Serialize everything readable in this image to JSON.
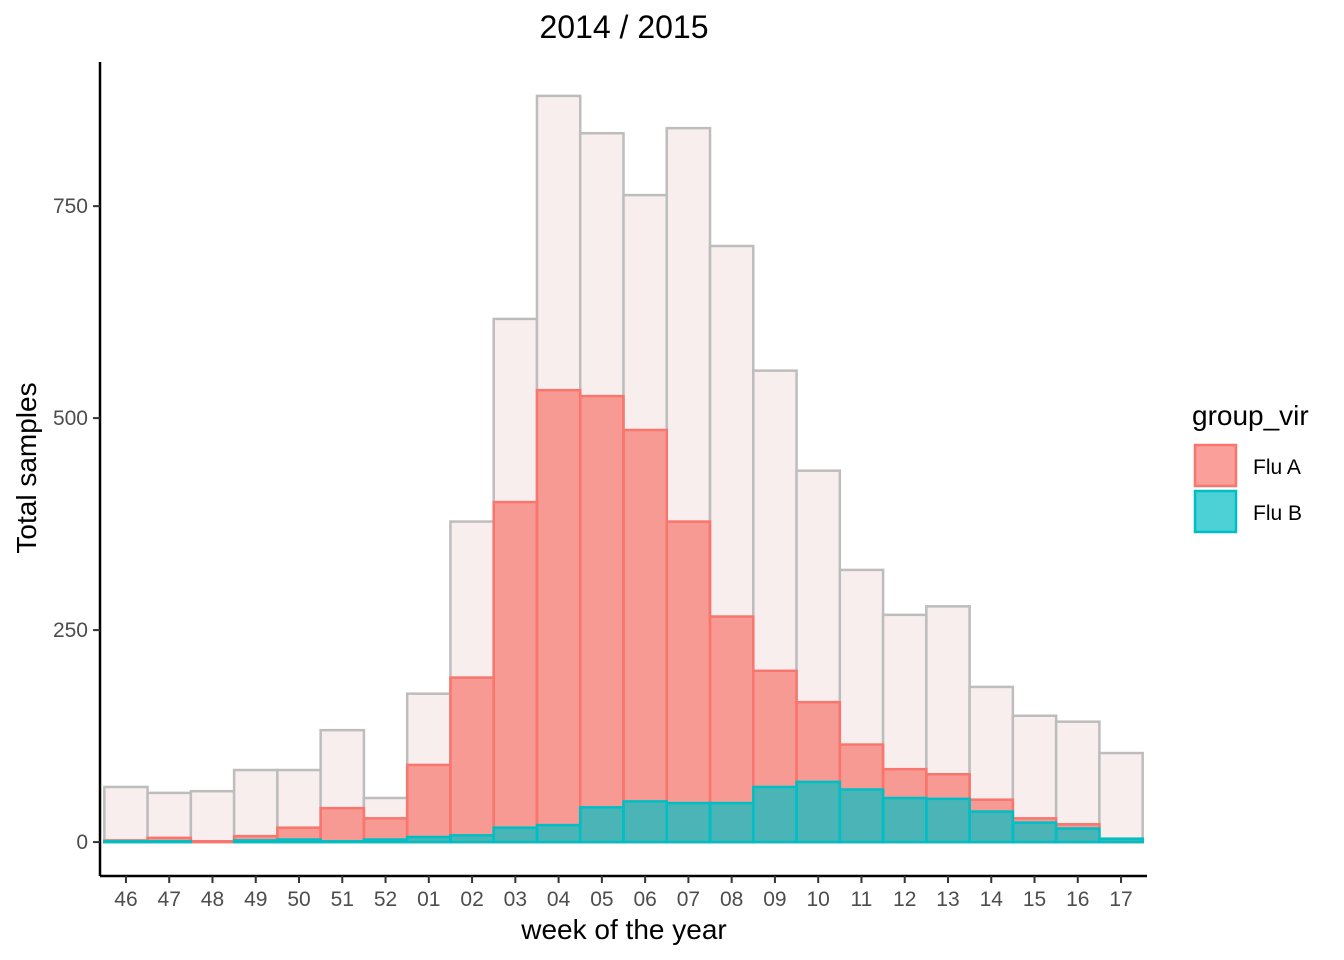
{
  "chart_data": {
    "type": "bar",
    "title": "2014 / 2015",
    "xlabel": "week of the year",
    "ylabel": "Total samples",
    "categories": [
      "46",
      "47",
      "48",
      "49",
      "50",
      "51",
      "52",
      "01",
      "02",
      "03",
      "04",
      "05",
      "06",
      "07",
      "08",
      "09",
      "10",
      "11",
      "12",
      "13",
      "14",
      "15",
      "16",
      "17"
    ],
    "ylim": [
      -40,
      920
    ],
    "yticks": [
      0,
      250,
      500,
      750
    ],
    "grid": false,
    "bar_mode": "overlay",
    "total": {
      "values": [
        65,
        58,
        60,
        85,
        85,
        132,
        52,
        175,
        378,
        617,
        880,
        836,
        763,
        842,
        703,
        556,
        438,
        321,
        268,
        278,
        183,
        149,
        142,
        105
      ],
      "fill": "#f9eeee",
      "stroke": "#bdbdbd"
    },
    "series": [
      {
        "name": "Flu A",
        "fill": "#f8766d",
        "stroke": "#f8766d",
        "values": [
          2,
          5,
          1,
          7,
          17,
          40,
          28,
          91,
          194,
          401,
          533,
          526,
          486,
          378,
          266,
          202,
          165,
          115,
          86,
          80,
          50,
          28,
          21,
          4
        ]
      },
      {
        "name": "Flu B",
        "fill": "#00bfc4",
        "stroke": "#00bfc4",
        "values": [
          1,
          1,
          0,
          2,
          3,
          1,
          3,
          6,
          8,
          17,
          20,
          41,
          48,
          46,
          46,
          65,
          71,
          62,
          52,
          51,
          36,
          23,
          16,
          4
        ]
      }
    ],
    "legend": {
      "title": "group_vir",
      "position": "right"
    }
  }
}
